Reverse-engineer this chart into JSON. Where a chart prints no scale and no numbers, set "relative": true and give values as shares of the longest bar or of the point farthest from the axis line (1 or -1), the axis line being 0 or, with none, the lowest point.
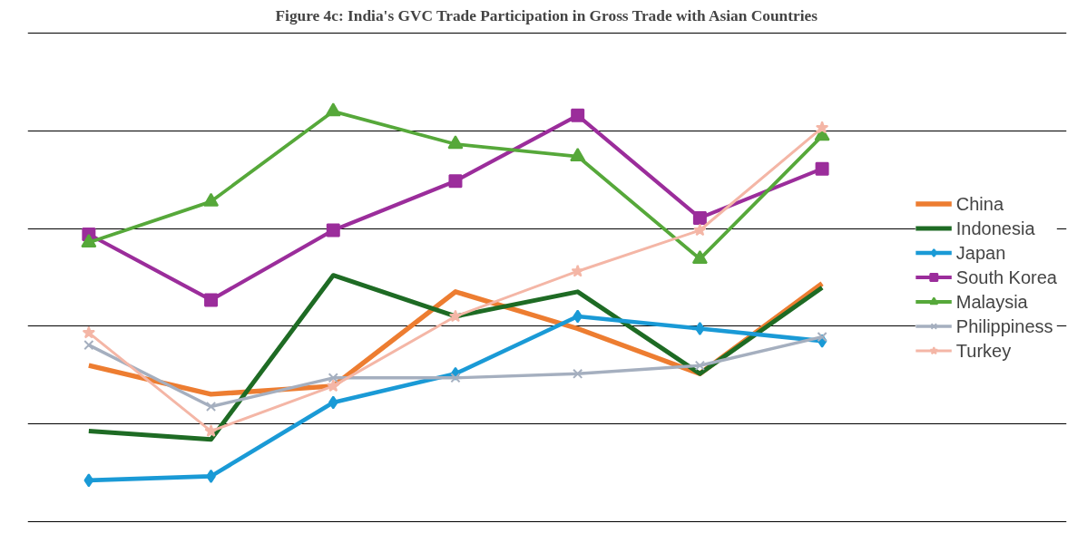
{
  "chart_data": {
    "type": "line",
    "title": "Figure 4c: India's GVC Trade Participation in Gross Trade with Asian Countries",
    "relative": true,
    "categories": [
      null,
      null,
      null,
      null,
      null,
      null,
      null
    ],
    "grid": "y",
    "legend": "right",
    "series": [
      {
        "name": "China",
        "color": "#ed7d31",
        "marker": "none",
        "values": [
          0.38,
          0.31,
          0.33,
          0.56,
          0.47,
          0.36,
          0.58
        ]
      },
      {
        "name": "Indonesia",
        "color": "#1e6b24",
        "marker": "none",
        "values": [
          0.22,
          0.2,
          0.6,
          0.5,
          0.56,
          0.36,
          0.57
        ]
      },
      {
        "name": "Japan",
        "color": "#1a9ad6",
        "marker": "diamond",
        "values": [
          0.1,
          0.11,
          0.29,
          0.36,
          0.5,
          0.47,
          0.44
        ]
      },
      {
        "name": "South Korea",
        "color": "#9b2d9b",
        "marker": "square",
        "values": [
          0.7,
          0.54,
          0.71,
          0.83,
          0.99,
          0.74,
          0.86
        ]
      },
      {
        "name": "Malaysia",
        "color": "#56a83a",
        "marker": "triangle",
        "values": [
          0.68,
          0.78,
          1.0,
          0.92,
          0.89,
          0.64,
          0.94
        ]
      },
      {
        "name": "Philippiness",
        "color": "#a5afbf",
        "marker": "cross",
        "values": [
          0.43,
          0.28,
          0.35,
          0.35,
          0.36,
          0.38,
          0.45
        ]
      },
      {
        "name": "Turkey",
        "color": "#f4b6a6",
        "marker": "star",
        "values": [
          0.46,
          0.22,
          0.33,
          0.5,
          0.61,
          0.71,
          0.96
        ]
      }
    ]
  }
}
